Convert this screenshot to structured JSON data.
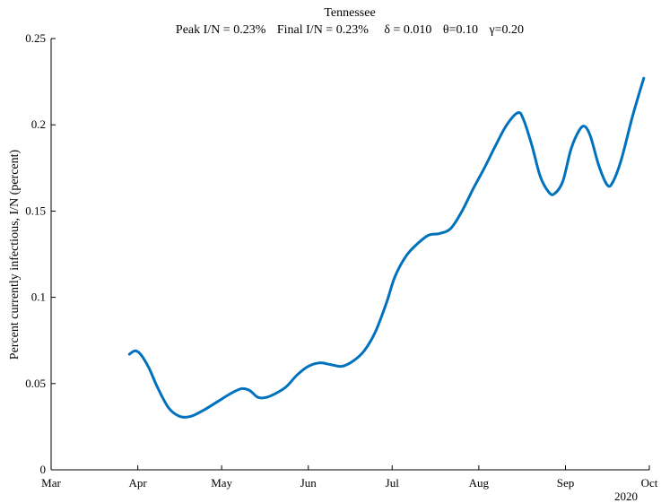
{
  "chart_data": {
    "type": "line",
    "title": "Tennessee",
    "subtitle": {
      "peak": "Peak I/N =  0.23%",
      "final": "Final I/N =  0.23%",
      "delta": "δ = 0.010",
      "theta": "θ=0.10",
      "gamma": "γ=0.20"
    },
    "xlabel": "",
    "ylabel": "Percent currently infectious, I/N (percent)",
    "year_label": "2020",
    "x_ticks": [
      "Mar",
      "Apr",
      "May",
      "Jun",
      "Jul",
      "Aug",
      "Sep",
      "Oct"
    ],
    "x_range": [
      "2020-03-01",
      "2020-10-01"
    ],
    "ylim": [
      0,
      0.25
    ],
    "y_ticks": [
      "0",
      "0.05",
      "0.1",
      "0.15",
      "0.2",
      "0.25"
    ],
    "grid": false,
    "series": [
      {
        "color": "#0072BD",
        "x": [
          "2020-03-29",
          "2020-03-31",
          "2020-04-02",
          "2020-04-05",
          "2020-04-08",
          "2020-04-12",
          "2020-04-16",
          "2020-04-20",
          "2020-04-25",
          "2020-04-30",
          "2020-05-04",
          "2020-05-08",
          "2020-05-11",
          "2020-05-14",
          "2020-05-17",
          "2020-05-20",
          "2020-05-24",
          "2020-05-28",
          "2020-06-01",
          "2020-06-05",
          "2020-06-09",
          "2020-06-13",
          "2020-06-17",
          "2020-06-21",
          "2020-06-25",
          "2020-06-29",
          "2020-07-02",
          "2020-07-06",
          "2020-07-10",
          "2020-07-14",
          "2020-07-18",
          "2020-07-22",
          "2020-07-26",
          "2020-07-30",
          "2020-08-03",
          "2020-08-07",
          "2020-08-11",
          "2020-08-15",
          "2020-08-17",
          "2020-08-20",
          "2020-08-23",
          "2020-08-26",
          "2020-08-28",
          "2020-08-31",
          "2020-09-03",
          "2020-09-06",
          "2020-09-08",
          "2020-09-10",
          "2020-09-13",
          "2020-09-16",
          "2020-09-18",
          "2020-09-21",
          "2020-09-25",
          "2020-09-29"
        ],
        "values": [
          0.067,
          0.069,
          0.067,
          0.059,
          0.048,
          0.036,
          0.031,
          0.031,
          0.035,
          0.04,
          0.044,
          0.047,
          0.046,
          0.042,
          0.042,
          0.044,
          0.048,
          0.055,
          0.06,
          0.062,
          0.061,
          0.06,
          0.063,
          0.069,
          0.08,
          0.097,
          0.112,
          0.124,
          0.131,
          0.136,
          0.137,
          0.14,
          0.15,
          0.163,
          0.175,
          0.188,
          0.2,
          0.207,
          0.203,
          0.188,
          0.17,
          0.161,
          0.16,
          0.167,
          0.186,
          0.197,
          0.199,
          0.193,
          0.176,
          0.165,
          0.167,
          0.18,
          0.205,
          0.227
        ]
      }
    ]
  }
}
